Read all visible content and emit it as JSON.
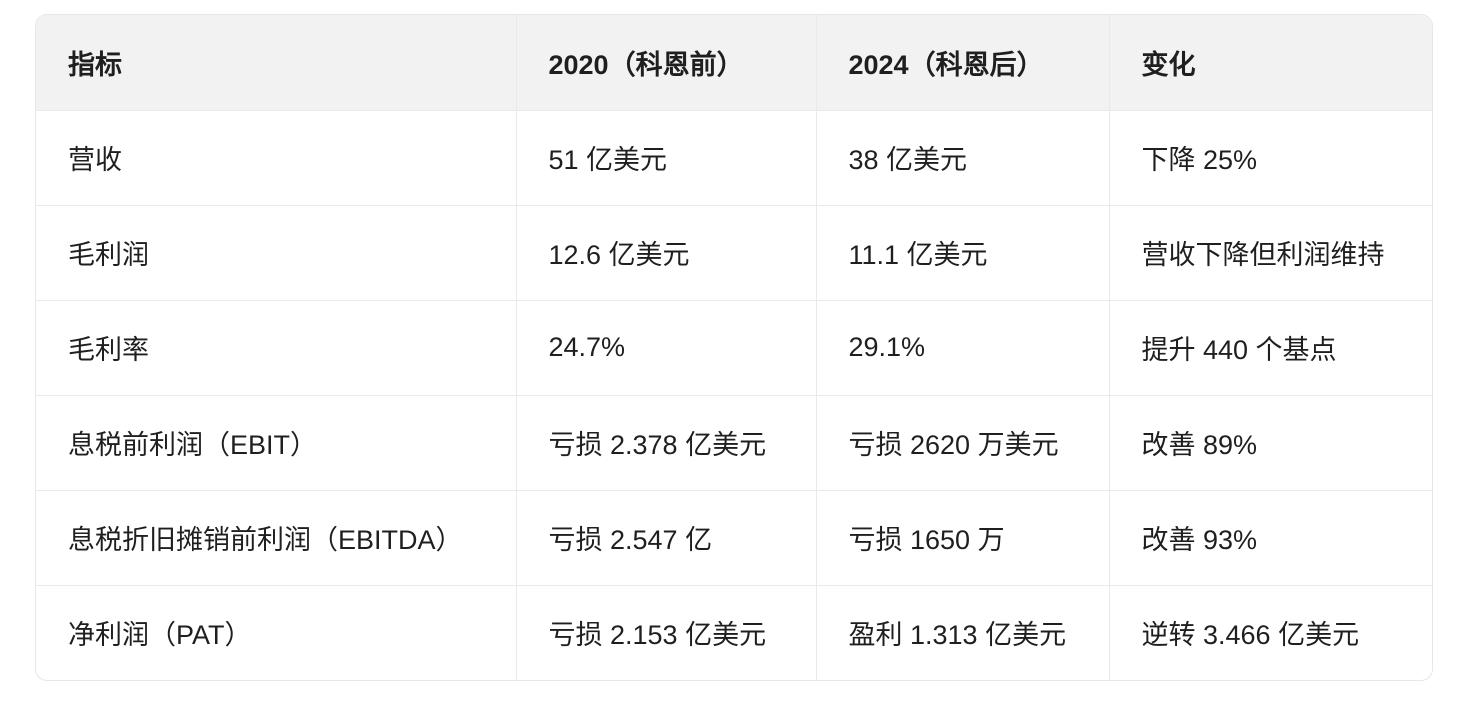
{
  "table": {
    "columns": [
      {
        "label": "指标"
      },
      {
        "label": "2020（科恩前）"
      },
      {
        "label": "2024（科恩后）"
      },
      {
        "label": "变化"
      }
    ],
    "rows": [
      {
        "metric": "营收",
        "y2020": "51 亿美元",
        "y2024": "38 亿美元",
        "change": "下降 25%"
      },
      {
        "metric": "毛利润",
        "y2020": "12.6 亿美元",
        "y2024": "11.1 亿美元",
        "change": "营收下降但利润维持"
      },
      {
        "metric": "毛利率",
        "y2020": "24.7%",
        "y2024": "29.1%",
        "change": "提升 440 个基点"
      },
      {
        "metric": "息税前利润（EBIT）",
        "y2020": "亏损 2.378 亿美元",
        "y2024": "亏损 2620 万美元",
        "change": "改善 89%"
      },
      {
        "metric": "息税折旧摊销前利润（EBITDA）",
        "y2020": "亏损 2.547 亿",
        "y2024": "亏损 1650 万",
        "change": "改善 93%"
      },
      {
        "metric": "净利润（PAT）",
        "y2020": "亏损 2.153 亿美元",
        "y2024": "盈利 1.313 亿美元",
        "change": "逆转 3.466 亿美元"
      }
    ]
  },
  "colors": {
    "header_bg": "#f2f2f2",
    "border": "#e9e9e9",
    "text": "#1f1f1f",
    "page_bg": "#ffffff"
  }
}
